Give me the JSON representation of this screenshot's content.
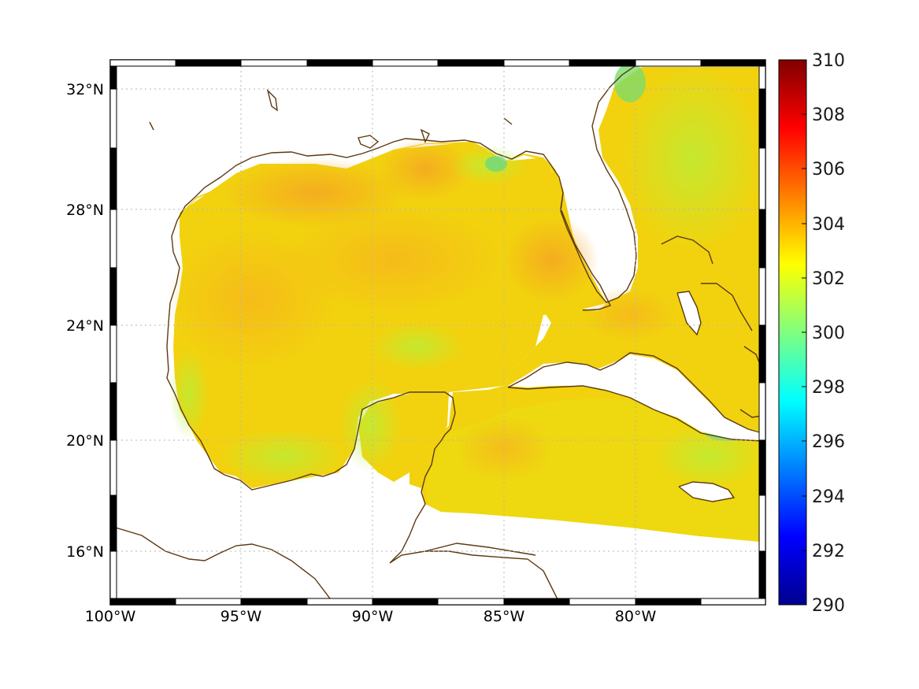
{
  "chart_data": {
    "type": "heatmap",
    "title": "",
    "xlabel": "",
    "ylabel": "",
    "x_ticks": [
      "100°W",
      "95°W",
      "90°W",
      "85°W",
      "80°W"
    ],
    "y_ticks": [
      "32°N",
      "28°N",
      "24°N",
      "20°N",
      "16°N"
    ],
    "lon_range": [
      -100,
      -75
    ],
    "lat_range": [
      14.2,
      33
    ],
    "grid": "dotted",
    "colorbar": {
      "ticks": [
        "310",
        "308",
        "306",
        "304",
        "302",
        "300",
        "298",
        "296",
        "294",
        "292",
        "290"
      ],
      "range": [
        290,
        310
      ],
      "colormap": "jet",
      "placement": "right"
    },
    "field_summary": {
      "typical_value_range": [
        299,
        305
      ],
      "warmest_area": "northern Gulf of Mexico",
      "coolest_area": "shelf waters and Atlantic coast"
    },
    "coastline_color": "#5c3a12"
  }
}
